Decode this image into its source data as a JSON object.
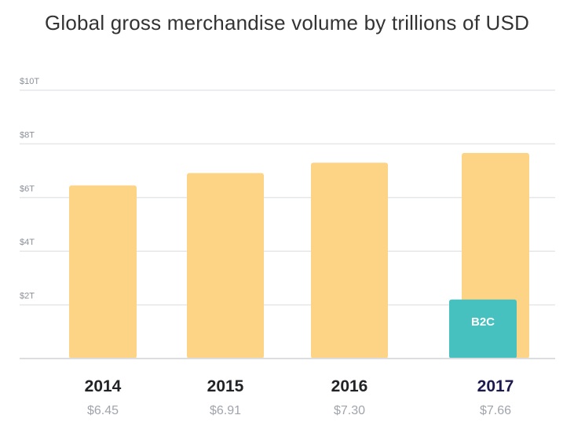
{
  "chart_data": {
    "type": "bar",
    "title": "Global gross merchandise volume by trillions of USD",
    "categories": [
      "2014",
      "2015",
      "2016",
      "2017"
    ],
    "values": [
      6.45,
      6.91,
      7.3,
      7.66
    ],
    "value_labels": [
      "$6.45",
      "$6.91",
      "$7.30",
      "$7.66"
    ],
    "ylim": [
      0,
      10
    ],
    "yticks": [
      2,
      4,
      6,
      8,
      10
    ],
    "ytick_labels": [
      "$2T",
      "$4T",
      "$6T",
      "$8T",
      "$10T"
    ],
    "grid": true,
    "highlight_category": "2017",
    "overlay": {
      "category": "2017",
      "label": "B2C",
      "value": 2.2
    },
    "colors": {
      "bar": "#fdd485",
      "overlay": "#47c1bf",
      "category_text": "#212326",
      "highlight_text": "#1c1a4f",
      "grid": "#e6e7e9"
    }
  }
}
